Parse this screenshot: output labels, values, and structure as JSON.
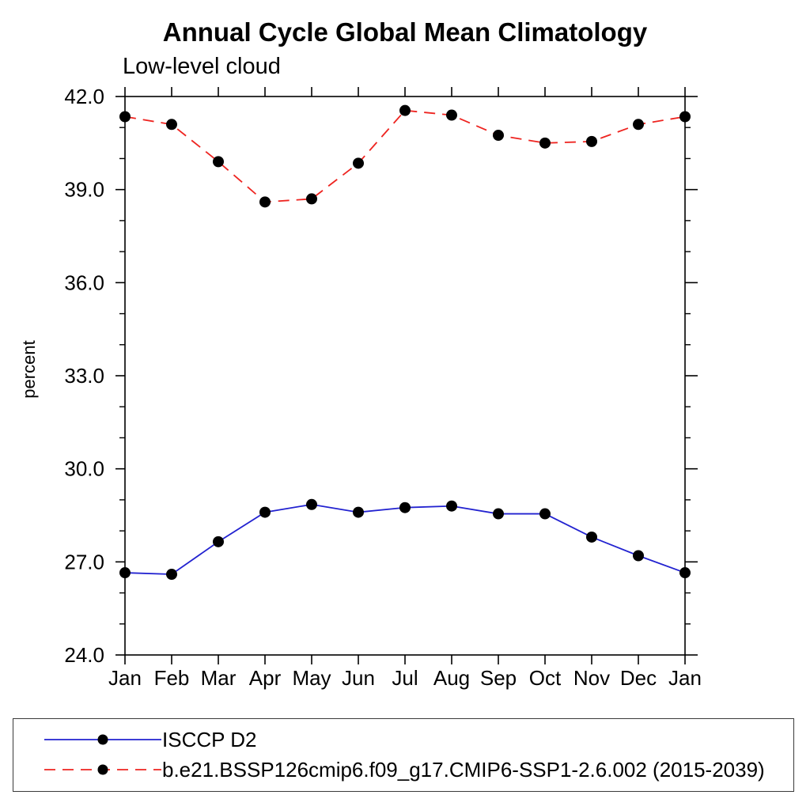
{
  "figure": {
    "title": "Annual Cycle Global Mean Climatology",
    "subtitle": "Low-level cloud"
  },
  "chart_data": {
    "type": "line",
    "title": "Annual Cycle Global Mean Climatology",
    "subtitle": "Low-level cloud",
    "xlabel": "",
    "ylabel": "percent",
    "categories": [
      "Jan",
      "Feb",
      "Mar",
      "Apr",
      "May",
      "Jun",
      "Jul",
      "Aug",
      "Sep",
      "Oct",
      "Nov",
      "Dec",
      "Jan"
    ],
    "ylim": [
      24.0,
      42.0
    ],
    "y_major_ticks": [
      24,
      27,
      30,
      33,
      36,
      39,
      42
    ],
    "y_tick_labels": [
      "24.0",
      "27.0",
      "30.0",
      "33.0",
      "36.0",
      "39.0",
      "42.0"
    ],
    "y_minor_step": 1.0,
    "grid": false,
    "legend_position": "bottom",
    "axis_color": "#000000",
    "marker_radius": 7,
    "series": [
      {
        "name": "ISCCP D2",
        "color": "#2222d0",
        "line_style": "solid",
        "marker": "filled-circle",
        "marker_color": "#000000",
        "values": [
          26.65,
          26.6,
          27.65,
          28.6,
          28.85,
          28.6,
          28.75,
          28.8,
          28.55,
          28.55,
          27.8,
          27.2,
          26.65
        ]
      },
      {
        "name": "b.e21.BSSP126cmip6.f09_g17.CMIP6-SSP1-2.6.002 (2015-2039)",
        "color": "#ee2420",
        "line_style": "dashed",
        "marker": "filled-circle",
        "marker_color": "#000000",
        "values": [
          41.35,
          41.1,
          39.9,
          38.6,
          38.7,
          39.85,
          41.55,
          41.4,
          40.75,
          40.5,
          40.55,
          41.1,
          41.35
        ]
      }
    ]
  },
  "legend": {
    "entries": [
      {
        "label": "ISCCP D2"
      },
      {
        "label": "b.e21.BSSP126cmip6.f09_g17.CMIP6-SSP1-2.6.002 (2015-2039)"
      }
    ]
  }
}
